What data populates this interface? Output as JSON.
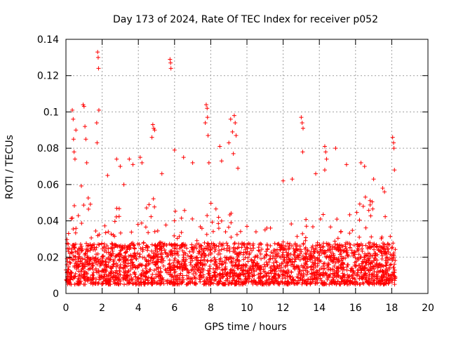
{
  "chart_data": {
    "type": "scatter",
    "title": "Day 173 of 2024, Rate Of TEC Index for receiver p052",
    "xlabel": "GPS time / hours",
    "ylabel": "ROTI / TECUs",
    "xlim": [
      0,
      20
    ],
    "ylim": [
      0,
      0.14
    ],
    "x_ticks": [
      0,
      2,
      4,
      6,
      8,
      10,
      12,
      14,
      16,
      18,
      20
    ],
    "y_ticks": [
      0,
      0.02,
      0.04,
      0.06,
      0.08,
      0.1,
      0.12,
      0.14
    ],
    "x_tick_labels": [
      "0",
      "2",
      "4",
      "6",
      "8",
      "10",
      "12",
      "14",
      "16",
      "18",
      "20"
    ],
    "y_tick_labels": [
      "0",
      "0.02",
      "0.04",
      "0.06",
      "0.08",
      "0.1",
      "0.12",
      "0.14"
    ],
    "grid": true,
    "marker": "+",
    "color": "#ff0000",
    "data_extent_hours": [
      0,
      18.2
    ],
    "series": [
      {
        "name": "ROTI",
        "baseline_range": [
          0.005,
          0.028
        ],
        "notable_points": [
          {
            "x": 0.35,
            "y": 0.101
          },
          {
            "x": 0.4,
            "y": 0.096
          },
          {
            "x": 0.42,
            "y": 0.085
          },
          {
            "x": 0.45,
            "y": 0.078
          },
          {
            "x": 0.5,
            "y": 0.074
          },
          {
            "x": 0.55,
            "y": 0.09
          },
          {
            "x": 0.95,
            "y": 0.104
          },
          {
            "x": 1.0,
            "y": 0.103
          },
          {
            "x": 1.05,
            "y": 0.092
          },
          {
            "x": 1.1,
            "y": 0.085
          },
          {
            "x": 1.15,
            "y": 0.072
          },
          {
            "x": 1.75,
            "y": 0.133
          },
          {
            "x": 1.78,
            "y": 0.13
          },
          {
            "x": 1.8,
            "y": 0.124
          },
          {
            "x": 1.82,
            "y": 0.101
          },
          {
            "x": 1.7,
            "y": 0.094
          },
          {
            "x": 1.72,
            "y": 0.083
          },
          {
            "x": 2.3,
            "y": 0.065
          },
          {
            "x": 2.8,
            "y": 0.074
          },
          {
            "x": 3.0,
            "y": 0.07
          },
          {
            "x": 3.2,
            "y": 0.06
          },
          {
            "x": 3.5,
            "y": 0.074
          },
          {
            "x": 3.7,
            "y": 0.071
          },
          {
            "x": 4.1,
            "y": 0.075
          },
          {
            "x": 4.2,
            "y": 0.072
          },
          {
            "x": 4.8,
            "y": 0.093
          },
          {
            "x": 4.85,
            "y": 0.091
          },
          {
            "x": 4.9,
            "y": 0.09
          },
          {
            "x": 4.75,
            "y": 0.086
          },
          {
            "x": 5.3,
            "y": 0.066
          },
          {
            "x": 5.75,
            "y": 0.129
          },
          {
            "x": 5.78,
            "y": 0.127
          },
          {
            "x": 5.8,
            "y": 0.124
          },
          {
            "x": 6.0,
            "y": 0.079
          },
          {
            "x": 6.5,
            "y": 0.075
          },
          {
            "x": 7.0,
            "y": 0.072
          },
          {
            "x": 7.75,
            "y": 0.104
          },
          {
            "x": 7.8,
            "y": 0.102
          },
          {
            "x": 7.82,
            "y": 0.097
          },
          {
            "x": 7.7,
            "y": 0.094
          },
          {
            "x": 7.85,
            "y": 0.087
          },
          {
            "x": 7.9,
            "y": 0.072
          },
          {
            "x": 8.5,
            "y": 0.081
          },
          {
            "x": 8.6,
            "y": 0.073
          },
          {
            "x": 9.1,
            "y": 0.096
          },
          {
            "x": 9.2,
            "y": 0.089
          },
          {
            "x": 9.3,
            "y": 0.098
          },
          {
            "x": 9.35,
            "y": 0.094
          },
          {
            "x": 9.4,
            "y": 0.087
          },
          {
            "x": 9.0,
            "y": 0.083
          },
          {
            "x": 9.25,
            "y": 0.077
          },
          {
            "x": 9.5,
            "y": 0.069
          },
          {
            "x": 10.0,
            "y": 0.037
          },
          {
            "x": 10.5,
            "y": 0.034
          },
          {
            "x": 11.0,
            "y": 0.035
          },
          {
            "x": 11.1,
            "y": 0.036
          },
          {
            "x": 11.3,
            "y": 0.036
          },
          {
            "x": 12.0,
            "y": 0.062
          },
          {
            "x": 12.5,
            "y": 0.063
          },
          {
            "x": 13.0,
            "y": 0.097
          },
          {
            "x": 13.05,
            "y": 0.094
          },
          {
            "x": 13.1,
            "y": 0.091
          },
          {
            "x": 13.08,
            "y": 0.078
          },
          {
            "x": 13.8,
            "y": 0.066
          },
          {
            "x": 14.3,
            "y": 0.081
          },
          {
            "x": 14.35,
            "y": 0.078
          },
          {
            "x": 14.4,
            "y": 0.074
          },
          {
            "x": 14.3,
            "y": 0.068
          },
          {
            "x": 14.9,
            "y": 0.08
          },
          {
            "x": 15.5,
            "y": 0.071
          },
          {
            "x": 16.3,
            "y": 0.072
          },
          {
            "x": 16.5,
            "y": 0.07
          },
          {
            "x": 17.0,
            "y": 0.063
          },
          {
            "x": 17.5,
            "y": 0.058
          },
          {
            "x": 17.6,
            "y": 0.056
          },
          {
            "x": 18.05,
            "y": 0.086
          },
          {
            "x": 18.1,
            "y": 0.083
          },
          {
            "x": 18.12,
            "y": 0.08
          },
          {
            "x": 18.15,
            "y": 0.068
          }
        ],
        "activity_profile": [
          {
            "x": 0.0,
            "top": 0.028
          },
          {
            "x": 0.5,
            "top": 0.065
          },
          {
            "x": 1.0,
            "top": 0.06
          },
          {
            "x": 1.5,
            "top": 0.045
          },
          {
            "x": 2.0,
            "top": 0.05
          },
          {
            "x": 2.5,
            "top": 0.045
          },
          {
            "x": 3.0,
            "top": 0.05
          },
          {
            "x": 3.5,
            "top": 0.045
          },
          {
            "x": 4.0,
            "top": 0.05
          },
          {
            "x": 4.5,
            "top": 0.048
          },
          {
            "x": 5.0,
            "top": 0.058
          },
          {
            "x": 5.5,
            "top": 0.06
          },
          {
            "x": 6.0,
            "top": 0.058
          },
          {
            "x": 6.5,
            "top": 0.048
          },
          {
            "x": 7.0,
            "top": 0.046
          },
          {
            "x": 7.5,
            "top": 0.05
          },
          {
            "x": 8.0,
            "top": 0.055
          },
          {
            "x": 8.5,
            "top": 0.05
          },
          {
            "x": 9.0,
            "top": 0.055
          },
          {
            "x": 9.5,
            "top": 0.045
          },
          {
            "x": 10.0,
            "top": 0.03
          },
          {
            "x": 10.5,
            "top": 0.025
          },
          {
            "x": 11.0,
            "top": 0.022
          },
          {
            "x": 11.5,
            "top": 0.02
          },
          {
            "x": 12.0,
            "top": 0.03
          },
          {
            "x": 12.5,
            "top": 0.04
          },
          {
            "x": 13.0,
            "top": 0.05
          },
          {
            "x": 13.5,
            "top": 0.04
          },
          {
            "x": 14.0,
            "top": 0.045
          },
          {
            "x": 14.5,
            "top": 0.05
          },
          {
            "x": 15.0,
            "top": 0.045
          },
          {
            "x": 15.5,
            "top": 0.05
          },
          {
            "x": 16.0,
            "top": 0.05
          },
          {
            "x": 16.5,
            "top": 0.055
          },
          {
            "x": 17.0,
            "top": 0.05
          },
          {
            "x": 17.5,
            "top": 0.055
          },
          {
            "x": 18.0,
            "top": 0.045
          },
          {
            "x": 18.2,
            "top": 0.03
          }
        ]
      }
    ]
  }
}
